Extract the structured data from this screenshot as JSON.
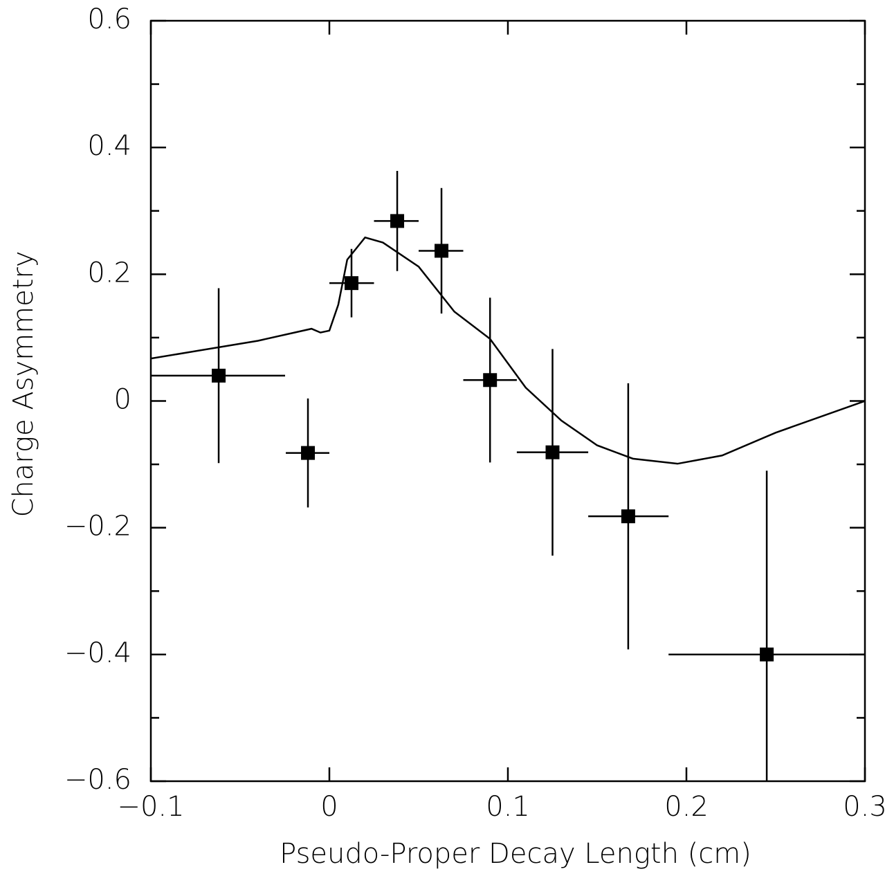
{
  "chart_data": {
    "type": "scatter",
    "xlabel": "Pseudo-Proper Decay Length (cm)",
    "ylabel": "Charge  Asymmetry",
    "color": "#000000",
    "x": [
      -0.062,
      -0.012,
      0.0124,
      0.038,
      0.0628,
      0.09,
      0.125,
      0.1674,
      0.245
    ],
    "values": [
      0.04,
      -0.082,
      0.186,
      0.284,
      0.237,
      0.033,
      -0.081,
      -0.182,
      -0.4
    ],
    "yerr": [
      0.138,
      0.086,
      0.054,
      0.079,
      0.099,
      0.13,
      0.163,
      0.21,
      0.29
    ],
    "x_low": [
      -0.1,
      -0.0244,
      0,
      0.025,
      0.05,
      0.075,
      0.105,
      0.145,
      0.19
    ],
    "x_high": [
      -0.0248,
      0,
      0.025,
      0.05,
      0.075,
      0.105,
      0.145,
      0.19,
      0.3
    ],
    "curve": {
      "x": [
        -0.1,
        -0.04,
        -0.01,
        -0.005,
        0,
        0.005,
        0.01,
        0.02,
        0.03,
        0.05,
        0.07,
        0.09,
        0.11,
        0.13,
        0.15,
        0.17,
        0.195,
        0.22,
        0.25,
        0.3
      ],
      "values": [
        0.067,
        0.095,
        0.114,
        0.108,
        0.111,
        0.152,
        0.223,
        0.258,
        0.25,
        0.212,
        0.141,
        0.098,
        0.021,
        -0.031,
        -0.07,
        -0.091,
        -0.099,
        -0.086,
        -0.05,
        0
      ]
    },
    "xlim": [
      -0.1,
      0.3
    ],
    "ylim": [
      -0.6,
      0.6
    ],
    "xticks": [
      {
        "value": -0.1,
        "label": "−0.1"
      },
      0,
      0.1,
      0.2,
      0.3
    ],
    "yticks": [
      {
        "value": -0.6,
        "label": "−0.6"
      },
      {
        "value": -0.4,
        "label": "−0.4"
      },
      {
        "value": -0.2,
        "label": "−0.2"
      },
      0,
      0.2,
      0.4,
      0.6
    ],
    "yminorticks": [
      -0.5,
      -0.3,
      -0.1,
      0.1,
      0.3,
      0.5
    ]
  }
}
